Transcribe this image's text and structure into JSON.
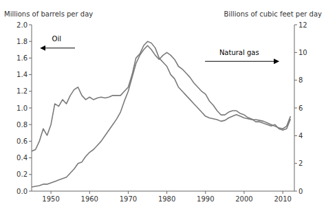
{
  "chart_data": {
    "type": "line",
    "ylabel": "Millions of barrels per day",
    "y2label": "Billions of cubic feet per day",
    "x": [
      1945,
      1946,
      1947,
      1948,
      1949,
      1950,
      1951,
      1952,
      1953,
      1954,
      1955,
      1956,
      1957,
      1958,
      1959,
      1960,
      1961,
      1962,
      1963,
      1964,
      1965,
      1966,
      1967,
      1968,
      1969,
      1970,
      1971,
      1972,
      1973,
      1974,
      1975,
      1976,
      1977,
      1978,
      1979,
      1980,
      1981,
      1982,
      1983,
      1984,
      1985,
      1986,
      1987,
      1988,
      1989,
      1990,
      1991,
      1992,
      1993,
      1994,
      1995,
      1996,
      1997,
      1998,
      1999,
      2000,
      2001,
      2002,
      2003,
      2004,
      2005,
      2006,
      2007,
      2008,
      2009,
      2010,
      2011,
      2012
    ],
    "series": [
      {
        "name": "Oil",
        "color": "#7a7a7a",
        "values": [
          0.48,
          0.5,
          0.6,
          0.75,
          0.67,
          0.8,
          1.05,
          1.02,
          1.1,
          1.05,
          1.15,
          1.22,
          1.25,
          1.15,
          1.1,
          1.13,
          1.1,
          1.12,
          1.13,
          1.12,
          1.13,
          1.15,
          1.15,
          1.15,
          1.2,
          1.25,
          1.4,
          1.6,
          1.65,
          1.75,
          1.8,
          1.78,
          1.72,
          1.6,
          1.55,
          1.5,
          1.4,
          1.35,
          1.25,
          1.2,
          1.15,
          1.1,
          1.05,
          1.0,
          0.95,
          0.9,
          0.88,
          0.87,
          0.86,
          0.84,
          0.85,
          0.88,
          0.9,
          0.92,
          0.9,
          0.88,
          0.87,
          0.86,
          0.86,
          0.85,
          0.84,
          0.82,
          0.8,
          0.78,
          0.76,
          0.75,
          0.78,
          0.9
        ]
      },
      {
        "name": "Natural gas",
        "color": "#7a7a7a",
        "axis": "y2",
        "values": [
          0.3,
          0.35,
          0.4,
          0.5,
          0.5,
          0.6,
          0.7,
          0.8,
          0.9,
          1.0,
          1.3,
          1.6,
          2.0,
          2.1,
          2.5,
          2.8,
          3.0,
          3.3,
          3.6,
          4.0,
          4.4,
          4.8,
          5.2,
          5.7,
          6.5,
          7.2,
          8.2,
          9.2,
          9.8,
          10.2,
          10.5,
          10.2,
          9.8,
          9.5,
          9.8,
          10.0,
          9.8,
          9.5,
          9.0,
          8.8,
          8.5,
          8.2,
          7.8,
          7.5,
          7.2,
          7.0,
          6.5,
          6.2,
          5.8,
          5.5,
          5.5,
          5.7,
          5.8,
          5.8,
          5.6,
          5.5,
          5.3,
          5.2,
          5.0,
          5.0,
          4.9,
          4.8,
          4.7,
          4.8,
          4.5,
          4.4,
          4.5,
          5.2
        ]
      }
    ],
    "xlim": [
      1945,
      2013
    ],
    "xticks": [
      1950,
      1960,
      1970,
      1980,
      1990,
      2000,
      2010
    ],
    "ylim": [
      0.0,
      2.0
    ],
    "yticks": [
      {
        "value": 0.0,
        "label": "0.0"
      },
      0.2,
      0.4,
      0.6,
      0.8,
      {
        "value": 1.0,
        "label": "1.0"
      },
      1.2,
      1.4,
      1.6,
      1.8,
      {
        "value": 2.0,
        "label": "2.0"
      }
    ],
    "y2lim": [
      0,
      12
    ],
    "y2ticks": [
      0,
      2,
      4,
      6,
      8,
      10,
      12
    ],
    "grid": false
  }
}
